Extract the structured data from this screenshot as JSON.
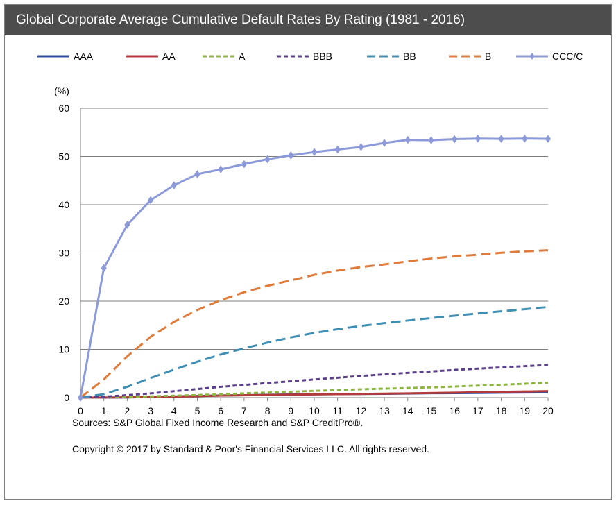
{
  "title": "Global Corporate Average Cumulative Default Rates By Rating (1981 - 2016)",
  "sources_text": "Sources: S&P Global Fixed Income Research and S&P CreditPro®.",
  "copyright_text": "Copyright © 2017 by Standard & Poor's Financial Services LLC. All rights reserved.",
  "chart_data": {
    "type": "line",
    "title": "Global Corporate Average Cumulative Default Rates By Rating (1981 - 2016)",
    "xlabel": "",
    "ylabel": "(%)",
    "xlim": [
      0,
      20
    ],
    "ylim": [
      0,
      60
    ],
    "grid": true,
    "legend_position": "top",
    "x": [
      0,
      1,
      2,
      3,
      4,
      5,
      6,
      7,
      8,
      9,
      10,
      11,
      12,
      13,
      14,
      15,
      16,
      17,
      18,
      19,
      20
    ],
    "x_ticks": [
      "0",
      "1",
      "2",
      "3",
      "4",
      "5",
      "6",
      "7",
      "8",
      "9",
      "10",
      "11",
      "12",
      "13",
      "14",
      "15",
      "16",
      "17",
      "18",
      "19",
      "20"
    ],
    "y_ticks": [
      "0",
      "10",
      "20",
      "30",
      "40",
      "50",
      "60"
    ],
    "series": [
      {
        "name": "AAA",
        "color": "#2e4fa3",
        "dash": "solid",
        "marker": false,
        "values": [
          0,
          0.0,
          0.03,
          0.13,
          0.24,
          0.35,
          0.45,
          0.51,
          0.59,
          0.65,
          0.7,
          0.73,
          0.76,
          0.79,
          0.85,
          0.91,
          0.94,
          0.97,
          1.03,
          1.06,
          1.09
        ]
      },
      {
        "name": "AA",
        "color": "#b23a3a",
        "dash": "solid",
        "marker": false,
        "values": [
          0,
          0.02,
          0.06,
          0.11,
          0.2,
          0.31,
          0.41,
          0.48,
          0.55,
          0.61,
          0.67,
          0.72,
          0.77,
          0.83,
          0.89,
          0.96,
          1.03,
          1.11,
          1.2,
          1.27,
          1.35
        ]
      },
      {
        "name": "A",
        "color": "#8db63f",
        "dash": "short",
        "marker": false,
        "values": [
          0,
          0.06,
          0.15,
          0.26,
          0.39,
          0.53,
          0.7,
          0.89,
          1.05,
          1.22,
          1.4,
          1.57,
          1.73,
          1.86,
          1.99,
          2.13,
          2.3,
          2.49,
          2.67,
          2.87,
          3.1
        ]
      },
      {
        "name": "BBB",
        "color": "#5b3f8c",
        "dash": "short",
        "marker": false,
        "values": [
          0,
          0.18,
          0.51,
          0.88,
          1.33,
          1.78,
          2.24,
          2.63,
          3.01,
          3.39,
          3.76,
          4.12,
          4.49,
          4.82,
          5.13,
          5.43,
          5.73,
          6.01,
          6.26,
          6.53,
          6.75
        ]
      },
      {
        "name": "BB",
        "color": "#3f8fb5",
        "dash": "long",
        "marker": false,
        "values": [
          0,
          0.72,
          2.24,
          4.06,
          5.8,
          7.45,
          8.94,
          10.23,
          11.4,
          12.49,
          13.41,
          14.19,
          14.86,
          15.45,
          15.98,
          16.5,
          16.98,
          17.46,
          17.9,
          18.33,
          18.8
        ]
      },
      {
        "name": "B",
        "color": "#e07b39",
        "dash": "long",
        "marker": false,
        "values": [
          0,
          3.76,
          8.56,
          12.61,
          15.7,
          18.18,
          20.2,
          21.85,
          23.17,
          24.31,
          25.45,
          26.35,
          27.06,
          27.63,
          28.24,
          28.84,
          29.29,
          29.62,
          30.03,
          30.33,
          30.56
        ]
      },
      {
        "name": "CCC/C",
        "color": "#8c9ad9",
        "dash": "solid",
        "marker": true,
        "values": [
          0,
          26.85,
          35.82,
          40.93,
          44.03,
          46.33,
          47.32,
          48.42,
          49.43,
          50.23,
          50.91,
          51.44,
          51.96,
          52.81,
          53.43,
          53.37,
          53.6,
          53.71,
          53.65,
          53.71,
          53.65
        ]
      }
    ]
  }
}
